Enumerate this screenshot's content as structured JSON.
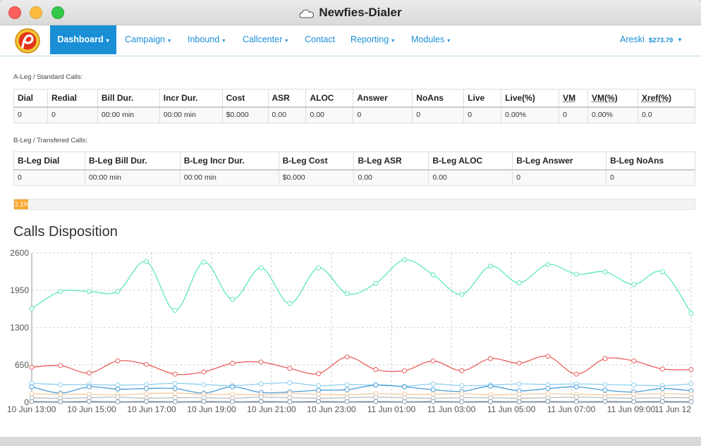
{
  "window": {
    "title": "Newfies-Dialer"
  },
  "nav": {
    "items": [
      {
        "label": "Dashboard",
        "active": true,
        "caret": true
      },
      {
        "label": "Campaign",
        "active": false,
        "caret": true
      },
      {
        "label": "Inbound",
        "active": false,
        "caret": true
      },
      {
        "label": "Callcenter",
        "active": false,
        "caret": true
      },
      {
        "label": "Contact",
        "active": false,
        "caret": false
      },
      {
        "label": "Reporting",
        "active": false,
        "caret": true
      },
      {
        "label": "Modules",
        "active": false,
        "caret": true
      }
    ],
    "user": "Areski",
    "balance": "$273.79"
  },
  "a_leg": {
    "label": "A-Leg / Standard Calls:",
    "headers": [
      "Dial",
      "Redial",
      "Bill Dur.",
      "Incr Dur.",
      "Cost",
      "ASR",
      "ALOC",
      "Answer",
      "NoAns",
      "Live",
      "Live(%)",
      "VM",
      "VM(%)",
      "Xref(%)"
    ],
    "row": [
      "0",
      "0",
      "00:00 min",
      "00:00 min",
      "$0.000",
      "0.00",
      "0.00",
      "0",
      "0",
      "0",
      "0.00%",
      "0",
      "0.00%",
      "0.0"
    ]
  },
  "b_leg": {
    "label": "B-Leg / Transfered Calls:",
    "headers": [
      "B-Leg Dial",
      "B-Leg Bill Dur.",
      "B-Leg Incr Dur.",
      "B-Leg Cost",
      "B-Leg ASR",
      "B-Leg ALOC",
      "B-Leg Answer",
      "B-Leg NoAns"
    ],
    "row": [
      "0",
      "00:00 min",
      "00:00 min",
      "$0.000",
      "0.00",
      "0.00",
      "0",
      "0"
    ]
  },
  "progress": {
    "value_percent": 2.1,
    "label": "2.1%",
    "color": "#f7a833"
  },
  "chart_data": {
    "type": "line",
    "title": "Calls Disposition",
    "ylim": [
      0,
      2600
    ],
    "yticks": [
      "0",
      "650",
      "1300",
      "1950",
      "2600"
    ],
    "xtick_labels": [
      "10 Jun 13:00",
      "10 Jun 15:00",
      "10 Jun 17:00",
      "10 Jun 19:00",
      "10 Jun 21:00",
      "10 Jun 23:00",
      "11 Jun 01:00",
      "11 Jun 03:00",
      "11 Jun 05:00",
      "11 Jun 07:00",
      "11 Jun 09:00",
      "11 Jun 12"
    ],
    "grid": true,
    "n_points": 24,
    "series": [
      {
        "color": "#5ee8b8",
        "values": [
          1630,
          1930,
          1930,
          1930,
          2450,
          1600,
          2440,
          1790,
          2340,
          1720,
          2340,
          1890,
          2070,
          2480,
          2220,
          1880,
          2370,
          2080,
          2400,
          2230,
          2270,
          2050,
          2270,
          1550
        ]
      },
      {
        "color": "#e8625e",
        "values": [
          610,
          640,
          510,
          720,
          660,
          490,
          530,
          680,
          700,
          590,
          500,
          790,
          570,
          550,
          720,
          550,
          760,
          680,
          800,
          490,
          760,
          720,
          580,
          570
        ]
      },
      {
        "color": "#8fd0ef",
        "values": [
          330,
          310,
          310,
          300,
          310,
          330,
          310,
          290,
          320,
          340,
          290,
          310,
          300,
          280,
          320,
          290,
          300,
          320,
          310,
          320,
          310,
          300,
          290,
          320
        ]
      },
      {
        "color": "#4a9ed8",
        "values": [
          270,
          160,
          270,
          230,
          240,
          240,
          160,
          270,
          170,
          180,
          210,
          220,
          300,
          270,
          220,
          190,
          280,
          200,
          240,
          270,
          210,
          180,
          240,
          200
        ]
      },
      {
        "color": "#f5c9a0",
        "values": [
          150,
          140,
          140,
          130,
          150,
          160,
          140,
          140,
          130,
          150,
          140,
          130,
          150,
          140,
          140,
          150,
          130,
          140,
          150,
          140,
          130,
          140,
          150,
          140
        ]
      },
      {
        "color": "#bbbbbb",
        "values": [
          80,
          70,
          80,
          90,
          70,
          80,
          80,
          70,
          90,
          80,
          70,
          80,
          90,
          80,
          70,
          80,
          80,
          70,
          80,
          90,
          80,
          70,
          80,
          80
        ]
      },
      {
        "color": "#8899aa",
        "values": [
          15,
          10,
          15,
          10,
          15,
          10,
          15,
          10,
          15,
          10,
          15,
          10,
          15,
          10,
          15,
          10,
          15,
          10,
          15,
          10,
          15,
          10,
          15,
          10
        ]
      }
    ]
  }
}
